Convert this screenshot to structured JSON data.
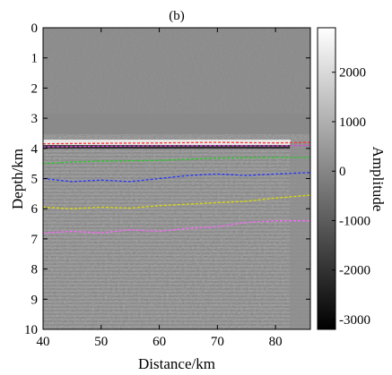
{
  "figure": {
    "panel_label": "(b)",
    "xlabel": "Distance/km",
    "ylabel": "Depth/km",
    "colorbar_label": "Amplitude"
  },
  "section": {
    "x_range_km": [
      40,
      86
    ],
    "depth_range_km": [
      0,
      10
    ],
    "x_ticks": [
      40,
      50,
      60,
      70,
      80
    ],
    "depth_ticks": [
      0,
      1,
      2,
      3,
      4,
      5,
      6,
      7,
      8,
      9,
      10
    ],
    "x_tick_labels": [
      "40",
      "50",
      "60",
      "70",
      "80"
    ],
    "depth_tick_labels": [
      "0",
      "1",
      "2",
      "3",
      "4",
      "5",
      "6",
      "7",
      "8",
      "9",
      "10"
    ],
    "background_gray": "#8a8a8a",
    "horizons": [
      {
        "color": "#ff3030",
        "points": [
          [
            40,
            3.85
          ],
          [
            50,
            3.83
          ],
          [
            60,
            3.82
          ],
          [
            70,
            3.8
          ],
          [
            80,
            3.82
          ],
          [
            86,
            3.8
          ]
        ]
      },
      {
        "color": "#e040e0",
        "points": [
          [
            40,
            3.95
          ],
          [
            50,
            3.93
          ],
          [
            60,
            3.92
          ],
          [
            70,
            3.91
          ],
          [
            80,
            3.92
          ],
          [
            86,
            3.9
          ]
        ]
      },
      {
        "color": "#22cc22",
        "points": [
          [
            40,
            4.5
          ],
          [
            45,
            4.45
          ],
          [
            50,
            4.42
          ],
          [
            60,
            4.4
          ],
          [
            70,
            4.32
          ],
          [
            80,
            4.3
          ],
          [
            86,
            4.3
          ]
        ]
      },
      {
        "color": "#2233ff",
        "points": [
          [
            40,
            5.0
          ],
          [
            45,
            5.1
          ],
          [
            50,
            5.05
          ],
          [
            55,
            5.1
          ],
          [
            60,
            5.0
          ],
          [
            65,
            4.9
          ],
          [
            70,
            4.85
          ],
          [
            75,
            4.9
          ],
          [
            80,
            4.85
          ],
          [
            86,
            4.8
          ]
        ]
      },
      {
        "color": "#dddd00",
        "points": [
          [
            40,
            5.95
          ],
          [
            45,
            6.0
          ],
          [
            50,
            5.95
          ],
          [
            55,
            5.98
          ],
          [
            60,
            5.9
          ],
          [
            65,
            5.85
          ],
          [
            70,
            5.8
          ],
          [
            75,
            5.75
          ],
          [
            80,
            5.65
          ],
          [
            86,
            5.55
          ]
        ]
      },
      {
        "color": "#ff66ff",
        "points": [
          [
            40,
            6.8
          ],
          [
            45,
            6.75
          ],
          [
            50,
            6.8
          ],
          [
            55,
            6.7
          ],
          [
            60,
            6.75
          ],
          [
            65,
            6.65
          ],
          [
            70,
            6.6
          ],
          [
            75,
            6.45
          ],
          [
            80,
            6.4
          ],
          [
            86,
            6.4
          ]
        ]
      }
    ]
  },
  "colorbar": {
    "range": [
      -3200,
      2900
    ],
    "ticks": [
      2000,
      1000,
      0,
      -1000,
      -2000,
      -3000
    ],
    "tick_labels": [
      "2000",
      "1000",
      "0",
      "-1000",
      "-2000",
      "-3000"
    ],
    "color_top": "#ffffff",
    "color_bottom": "#000000"
  }
}
